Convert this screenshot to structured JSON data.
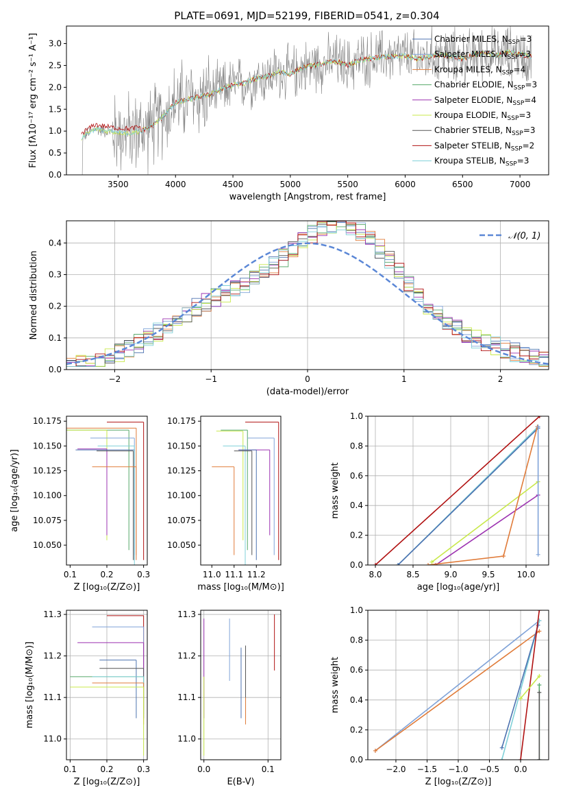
{
  "figure_title": "PLATE=0691, MJD=52199, FIBERID=0541, z=0.304",
  "series": [
    {
      "name": "Chabrier MILES",
      "nssp": "3",
      "color": "#4c72b0"
    },
    {
      "name": "Salpeter MILES",
      "nssp": "3",
      "color": "#7fa2d8"
    },
    {
      "name": "Kroupa MILES",
      "nssp": "4",
      "color": "#e07b39"
    },
    {
      "name": "Chabrier ELODIE",
      "nssp": "3",
      "color": "#55a868"
    },
    {
      "name": "Salpeter ELODIE",
      "nssp": "4",
      "color": "#9b30b0"
    },
    {
      "name": "Kroupa ELODIE",
      "nssp": "3",
      "color": "#c8e84a"
    },
    {
      "name": "Chabrier STELIB",
      "nssp": "3",
      "color": "#555555"
    },
    {
      "name": "Salpeter STELIB",
      "nssp": "2",
      "color": "#b01010"
    },
    {
      "name": "Kroupa STELIB",
      "nssp": "3",
      "color": "#7fd0d8"
    }
  ],
  "chart_data": [
    {
      "id": "spectrum",
      "type": "line",
      "title": "PLATE=0691, MJD=52199, FIBERID=0541, z=0.304",
      "xlabel": "wavelength [Angstrom, rest frame]",
      "ylabel": "Flux [fλ10⁻¹⁷ erg cm⁻² s⁻¹ A⁻¹]",
      "xlim": [
        3050,
        7250
      ],
      "ylim": [
        0,
        3.4
      ],
      "xticks": [
        3500,
        4000,
        4500,
        5000,
        5500,
        6000,
        6500,
        7000
      ],
      "yticks": [
        0.0,
        0.5,
        1.0,
        1.5,
        2.0,
        2.5,
        3.0
      ],
      "data_color": "#808080",
      "model_x": [
        3180,
        3300,
        3450,
        3600,
        3700,
        3800,
        3900,
        4000,
        4100,
        4200,
        4300,
        4400,
        4500,
        4600,
        4700,
        4800,
        4900,
        5000,
        5100,
        5200,
        5300,
        5400,
        5500,
        5600,
        5700,
        5800,
        5900,
        6000,
        6100,
        6200,
        6300,
        6400,
        6500,
        6600,
        6700,
        6800,
        6900,
        7000,
        7100
      ],
      "model_y": [
        0.85,
        1.05,
        0.98,
        0.95,
        1.0,
        1.12,
        1.35,
        1.65,
        1.72,
        1.78,
        1.83,
        1.95,
        2.05,
        2.1,
        2.2,
        2.25,
        2.35,
        2.3,
        2.45,
        2.5,
        2.55,
        2.6,
        2.5,
        2.62,
        2.65,
        2.7,
        2.7,
        2.72,
        2.65,
        2.7,
        2.75,
        2.72,
        2.65,
        2.75,
        2.78,
        2.72,
        2.8,
        2.75,
        2.7
      ]
    },
    {
      "id": "residuals",
      "type": "bar",
      "xlabel": "(data-model)/error",
      "ylabel": "Normed distribution",
      "xlim": [
        -2.5,
        2.5
      ],
      "ylim": [
        0,
        0.47
      ],
      "xticks": [
        -2,
        -1,
        0,
        1,
        2
      ],
      "yticks": [
        0.0,
        0.1,
        0.2,
        0.3,
        0.4
      ],
      "gaussian_label": "𝒩(0, 1)",
      "gaussian_color": "#5b87d6",
      "bin_width": 0.1
    },
    {
      "id": "age_vs_Z",
      "type": "scatter",
      "xlabel": "Z [log₁₀(Z/Z⊙)]",
      "ylabel": "age  [log₁₀(age/yr)]",
      "xlim": [
        0.09,
        0.31
      ],
      "ylim": [
        10.03,
        10.18
      ],
      "xticks": [
        0.1,
        0.2,
        0.3
      ],
      "yticks": [
        10.05,
        10.075,
        10.1,
        10.125,
        10.15,
        10.175
      ],
      "points": [
        {
          "s": 7,
          "x": 0.3,
          "y": 10.174,
          "xerr": 0.1,
          "ylo": 10.035
        },
        {
          "s": 2,
          "x": 0.28,
          "y": 10.168,
          "xerr": 0.2,
          "ylo": 10.035
        },
        {
          "s": 3,
          "x": 0.26,
          "y": 10.166,
          "xerr": 0.18,
          "ylo": 10.045
        },
        {
          "s": 5,
          "x": 0.2,
          "y": 10.166,
          "xerr": 0.2,
          "ylo": 10.055
        },
        {
          "s": 1,
          "x": 0.275,
          "y": 10.158,
          "xerr": 0.12,
          "ylo": 10.04
        },
        {
          "s": 4,
          "x": 0.2,
          "y": 10.147,
          "xerr": 0.08,
          "ylo": 10.06
        },
        {
          "s": 0,
          "x": 0.275,
          "y": 10.146,
          "xerr": 0.16,
          "ylo": 10.035
        },
        {
          "s": 8,
          "x": 0.275,
          "y": 10.15,
          "xerr": 0.1,
          "ylo": 10.03
        },
        {
          "s": 6,
          "x": 0.272,
          "y": 10.145,
          "xerr": 0.1,
          "ylo": 10.035
        },
        {
          "s": 2,
          "x": 0.28,
          "y": 10.129,
          "xerr": 0.12,
          "ylo": 10.04
        }
      ]
    },
    {
      "id": "age_vs_mass",
      "type": "scatter",
      "xlabel": "mass [log₁₀(M/M⊙)]",
      "ylabel": "",
      "xlim": [
        10.95,
        11.31
      ],
      "ylim": [
        10.03,
        10.18
      ],
      "xticks": [
        11.0,
        11.1,
        11.2
      ],
      "yticks": [
        10.05,
        10.075,
        10.1,
        10.125,
        10.15,
        10.175
      ],
      "points": [
        {
          "s": 7,
          "x": 11.3,
          "y": 10.174,
          "xerr": 0.15,
          "ylo": 10.035
        },
        {
          "s": 5,
          "x": 11.14,
          "y": 10.165,
          "xerr": 0.12,
          "ylo": 10.055
        },
        {
          "s": 3,
          "x": 11.16,
          "y": 10.166,
          "xerr": 0.12,
          "ylo": 10.045
        },
        {
          "s": 1,
          "x": 11.28,
          "y": 10.158,
          "xerr": 0.12,
          "ylo": 10.04
        },
        {
          "s": 8,
          "x": 11.15,
          "y": 10.15,
          "xerr": 0.1,
          "ylo": 10.03
        },
        {
          "s": 4,
          "x": 11.26,
          "y": 10.146,
          "xerr": 0.14,
          "ylo": 10.06
        },
        {
          "s": 0,
          "x": 11.2,
          "y": 10.146,
          "xerr": 0.08,
          "ylo": 10.035
        },
        {
          "s": 6,
          "x": 11.18,
          "y": 10.145,
          "xerr": 0.08,
          "ylo": 10.04
        },
        {
          "s": 2,
          "x": 11.1,
          "y": 10.129,
          "xerr": 0.1,
          "ylo": 10.04
        }
      ]
    },
    {
      "id": "weight_vs_age",
      "type": "line",
      "xlabel": "age  [log₁₀(age/yr)]",
      "ylabel": "mass weight",
      "xlim": [
        7.9,
        10.3
      ],
      "ylim": [
        0,
        1.0
      ],
      "xticks": [
        8.0,
        8.5,
        9.0,
        9.5,
        10.0
      ],
      "yticks": [
        0.0,
        0.2,
        0.4,
        0.6,
        0.8,
        1.0
      ],
      "lines": [
        {
          "s": 7,
          "x": [
            8.0,
            10.18
          ],
          "y": [
            0.0,
            1.0
          ]
        },
        {
          "s": 8,
          "x": [
            8.3,
            10.16
          ],
          "y": [
            0.0,
            0.93
          ]
        },
        {
          "s": 0,
          "x": [
            8.3,
            10.16
          ],
          "y": [
            0.0,
            0.92
          ]
        },
        {
          "s": 5,
          "x": [
            8.75,
            10.16
          ],
          "y": [
            0.02,
            0.56
          ]
        },
        {
          "s": 4,
          "x": [
            8.8,
            10.16
          ],
          "y": [
            0.0,
            0.47
          ]
        },
        {
          "s": 2,
          "x": [
            8.7,
            9.7,
            10.15
          ],
          "y": [
            0.0,
            0.06,
            0.93
          ]
        },
        {
          "s": 1,
          "x": [
            10.16,
            10.16
          ],
          "y": [
            0.07,
            0.93
          ]
        }
      ]
    },
    {
      "id": "mass_vs_Z",
      "type": "scatter",
      "xlabel": "Z [log₁₀(Z/Z⊙)]",
      "ylabel": "mass [log₁₀(M/M⊙)]",
      "xlim": [
        0.09,
        0.31
      ],
      "ylim": [
        10.95,
        11.31
      ],
      "xticks": [
        0.1,
        0.2,
        0.3
      ],
      "yticks": [
        11.0,
        11.1,
        11.2,
        11.3
      ],
      "points": [
        {
          "s": 7,
          "x": 0.3,
          "y": 11.297,
          "xerr": 0.1,
          "ylo": 11.17
        },
        {
          "s": 1,
          "x": 0.3,
          "y": 11.27,
          "xerr": 0.14,
          "ylo": 11.15
        },
        {
          "s": 4,
          "x": 0.3,
          "y": 11.232,
          "xerr": 0.18,
          "ylo": 11.15
        },
        {
          "s": 0,
          "x": 0.28,
          "y": 11.19,
          "xerr": 0.1,
          "ylo": 11.05
        },
        {
          "s": 6,
          "x": 0.3,
          "y": 11.17,
          "xerr": 0.12,
          "ylo": 11.05
        },
        {
          "s": 3,
          "x": 0.3,
          "y": 11.15,
          "xerr": 0.2,
          "ylo": 11.06
        },
        {
          "s": 8,
          "x": 0.3,
          "y": 11.15,
          "xerr": 0.14,
          "ylo": 11.05
        },
        {
          "s": 2,
          "x": 0.3,
          "y": 11.135,
          "xerr": 0.14,
          "ylo": 11.035
        },
        {
          "s": 5,
          "x": 0.3,
          "y": 11.125,
          "xerr": 0.2,
          "ylo": 10.96
        }
      ]
    },
    {
      "id": "mass_vs_ebv",
      "type": "scatter",
      "xlabel": "E(B-V)",
      "ylabel": "",
      "xlim": [
        -0.005,
        0.12
      ],
      "ylim": [
        10.95,
        11.31
      ],
      "xticks": [
        0.0,
        0.1
      ],
      "yticks": [
        11.0,
        11.1,
        11.2,
        11.3
      ],
      "points": [
        {
          "s": 7,
          "x": 0.11,
          "y": 11.3,
          "ylo": 11.165
        },
        {
          "s": 1,
          "x": 0.04,
          "y": 11.29,
          "ylo": 11.14
        },
        {
          "s": 4,
          "x": 0.0,
          "y": 11.29,
          "ylo": 11.05
        },
        {
          "s": 5,
          "x": 0.0,
          "y": 11.15,
          "ylo": 10.96
        },
        {
          "s": 6,
          "x": 0.065,
          "y": 11.225,
          "ylo": 11.05
        },
        {
          "s": 0,
          "x": 0.058,
          "y": 11.22,
          "ylo": 11.05
        },
        {
          "s": 2,
          "x": 0.065,
          "y": 11.1,
          "ylo": 11.035
        }
      ]
    },
    {
      "id": "weight_vs_Z",
      "type": "line",
      "xlabel": "Z [log₁₀(Z/Z⊙)]",
      "ylabel": "mass weight",
      "xlim": [
        -2.45,
        0.45
      ],
      "ylim": [
        0,
        1.0
      ],
      "xticks": [
        -2.0,
        -1.5,
        -1.0,
        -0.5,
        0.0
      ],
      "yticks": [
        0.0,
        0.2,
        0.4,
        0.6,
        0.8,
        1.0
      ],
      "lines": [
        {
          "s": 1,
          "x": [
            -2.33,
            0.3
          ],
          "y": [
            0.06,
            0.93
          ]
        },
        {
          "s": 2,
          "x": [
            -2.33,
            0.3
          ],
          "y": [
            0.06,
            0.86
          ]
        },
        {
          "s": 8,
          "x": [
            -0.3,
            0.3
          ],
          "y": [
            0.0,
            0.93
          ]
        },
        {
          "s": 0,
          "x": [
            -0.3,
            0.28
          ],
          "y": [
            0.08,
            0.9
          ]
        },
        {
          "s": 7,
          "x": [
            0.0,
            0.3
          ],
          "y": [
            0.0,
            1.0
          ]
        },
        {
          "s": 5,
          "x": [
            0.0,
            0.3
          ],
          "y": [
            0.41,
            0.56
          ]
        },
        {
          "s": 3,
          "x": [
            0.3,
            0.3
          ],
          "y": [
            0.0,
            0.5
          ]
        },
        {
          "s": 6,
          "x": [
            0.3,
            0.3
          ],
          "y": [
            0.0,
            0.45
          ]
        }
      ]
    }
  ]
}
